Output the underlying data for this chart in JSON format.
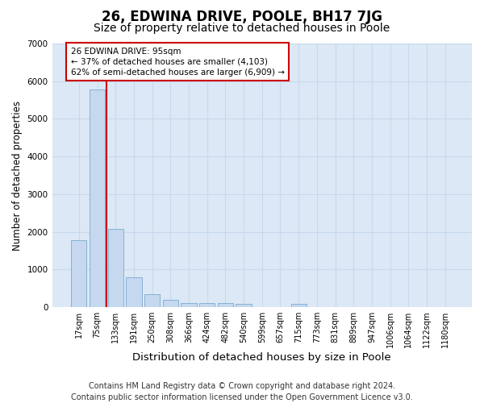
{
  "title": "26, EDWINA DRIVE, POOLE, BH17 7JG",
  "subtitle": "Size of property relative to detached houses in Poole",
  "xlabel": "Distribution of detached houses by size in Poole",
  "ylabel": "Number of detached properties",
  "bar_labels": [
    "17sqm",
    "75sqm",
    "133sqm",
    "191sqm",
    "250sqm",
    "308sqm",
    "366sqm",
    "424sqm",
    "482sqm",
    "540sqm",
    "599sqm",
    "657sqm",
    "715sqm",
    "773sqm",
    "831sqm",
    "889sqm",
    "947sqm",
    "1006sqm",
    "1064sqm",
    "1122sqm",
    "1180sqm"
  ],
  "bar_values": [
    1780,
    5780,
    2080,
    800,
    340,
    200,
    115,
    105,
    100,
    80,
    0,
    0,
    80,
    0,
    0,
    0,
    0,
    0,
    0,
    0,
    0
  ],
  "bar_color": "#c5d8ef",
  "bar_edge_color": "#7aaad0",
  "grid_color": "#c8d8ee",
  "bg_color": "#dce8f5",
  "annotation_text": "26 EDWINA DRIVE: 95sqm\n← 37% of detached houses are smaller (4,103)\n62% of semi-detached houses are larger (6,909) →",
  "vline_color": "#cc0000",
  "ylim": [
    0,
    7000
  ],
  "footer": "Contains HM Land Registry data © Crown copyright and database right 2024.\nContains public sector information licensed under the Open Government Licence v3.0.",
  "title_fontsize": 12,
  "subtitle_fontsize": 10,
  "xlabel_fontsize": 9.5,
  "ylabel_fontsize": 8.5,
  "footer_fontsize": 7,
  "tick_fontsize": 7
}
